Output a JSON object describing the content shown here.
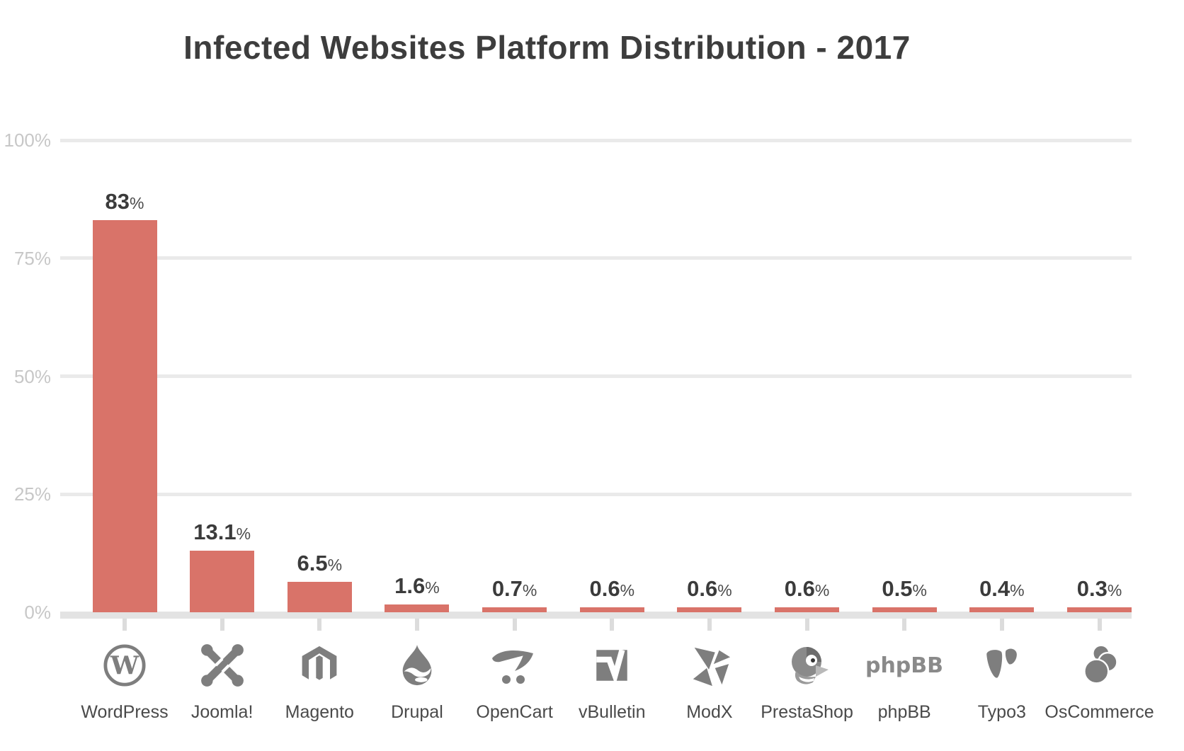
{
  "title": "Infected Websites Platform Distribution - 2017",
  "percent_sign": "%",
  "colors": {
    "bar": "#d97369",
    "grid": "#eaeaea",
    "axis": "#e3e3e3",
    "y_tick_label": "#c7c7c7",
    "value_label": "#3b3b3b",
    "category_label": "#4a4a4a",
    "title": "#3d3d3d",
    "icon": "#7e7e7e"
  },
  "icon_glyphs": {
    "wordpress_w": "W",
    "phpbb_wordmark": "phpBB"
  },
  "chart_data": {
    "type": "bar",
    "title": "Infected Websites Platform Distribution - 2017",
    "categories": [
      "WordPress",
      "Joomla!",
      "Magento",
      "Drupal",
      "OpenCart",
      "vBulletin",
      "ModX",
      "PrestaShop",
      "phpBB",
      "Typo3",
      "OsCommerce"
    ],
    "values": [
      83,
      13.1,
      6.5,
      1.6,
      0.7,
      0.6,
      0.6,
      0.6,
      0.5,
      0.4,
      0.3
    ],
    "value_labels": [
      "83%",
      "13.1%",
      "6.5%",
      "1.6%",
      "0.7%",
      "0.6%",
      "0.6%",
      "0.6%",
      "0.5%",
      "0.4%",
      "0.3%"
    ],
    "icons": [
      "wordpress-icon",
      "joomla-icon",
      "magento-icon",
      "drupal-icon",
      "opencart-icon",
      "vbulletin-icon",
      "modx-icon",
      "prestashop-icon",
      "phpbb-icon",
      "typo3-icon",
      "oscommerce-icon"
    ],
    "xlabel": "",
    "ylabel": "",
    "ylim": [
      0,
      100
    ],
    "y_ticks": [
      {
        "label": "100%",
        "value": 100
      },
      {
        "label": "75%",
        "value": 75
      },
      {
        "label": "50%",
        "value": 50
      },
      {
        "label": "25%",
        "value": 25
      },
      {
        "label": "0%",
        "value": 0
      }
    ],
    "grid": true,
    "legend": false,
    "bar_color": "#d97369"
  }
}
